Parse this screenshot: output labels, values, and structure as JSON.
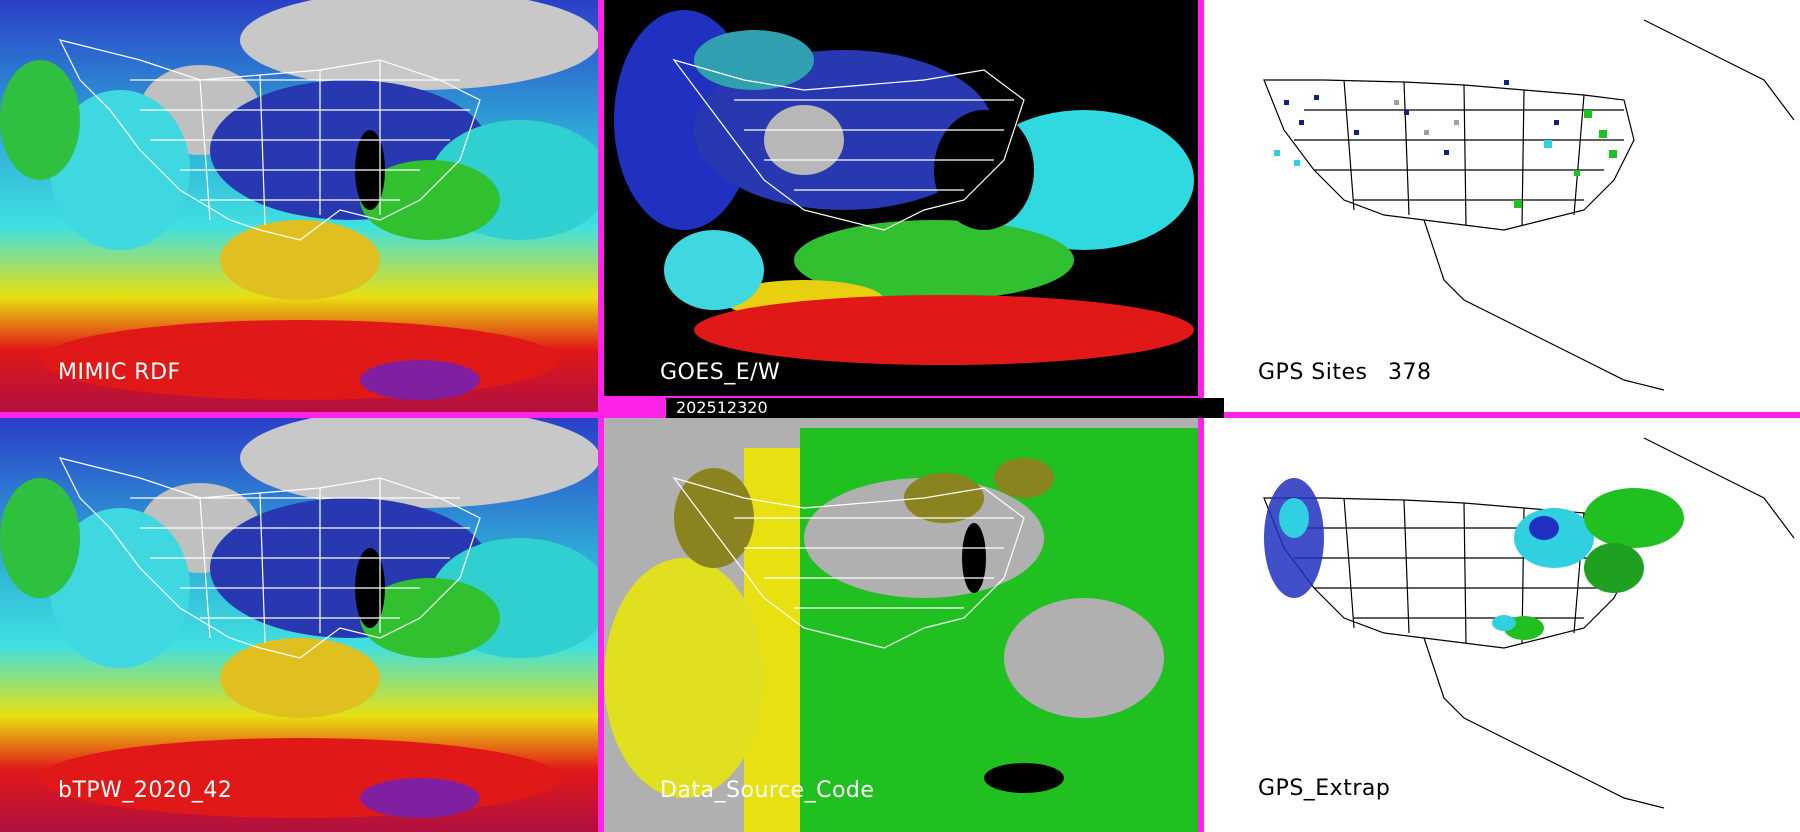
{
  "panels": [
    {
      "id": "mimic",
      "label": "MIMIC RDF"
    },
    {
      "id": "goes",
      "label": "GOES_E/W"
    },
    {
      "id": "gps-sites",
      "label": "GPS Sites",
      "count": "378"
    },
    {
      "id": "btpw",
      "label": "bTPW_2020_42"
    },
    {
      "id": "source",
      "label": "Data_Source_Code"
    },
    {
      "id": "gps-extrap",
      "label": "GPS_Extrap"
    }
  ],
  "timestamp": "202512320",
  "colors": {
    "divider": "#ff22e8",
    "red": "#e01010",
    "yellow": "#e8e010",
    "green": "#20c020",
    "cyan": "#30e0e0",
    "blue": "#2030c0",
    "navy": "#101870",
    "gray": "#b0b0b0",
    "olive": "#8a8420"
  }
}
